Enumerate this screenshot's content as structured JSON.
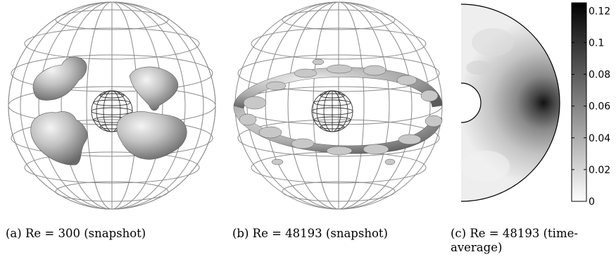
{
  "figure": {
    "panels": [
      {
        "id": "a",
        "caption": "(a) Re = 300 (snapshot)",
        "kind": "isosurface-snapshot"
      },
      {
        "id": "b",
        "caption": "(b) Re = 48193 (snapshot)",
        "kind": "isosurface-snapshot"
      },
      {
        "id": "c",
        "caption": "(c) Re = 48193 (time-average)",
        "kind": "meridional-contour"
      }
    ],
    "colorbar": {
      "min": 0,
      "max": 0.125,
      "ticks": [
        "0",
        "0.02",
        "0.04",
        "0.06",
        "0.08",
        "0.1",
        "0.12"
      ],
      "tick_values": [
        0,
        0.02,
        0.04,
        0.06,
        0.08,
        0.1,
        0.12
      ],
      "colormap": "white-to-black"
    }
  }
}
